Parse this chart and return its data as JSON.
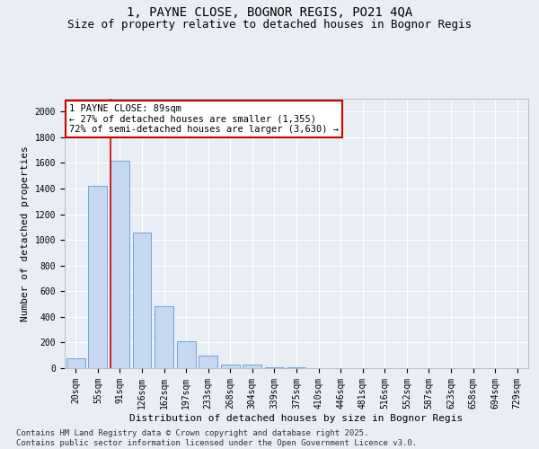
{
  "title_line1": "1, PAYNE CLOSE, BOGNOR REGIS, PO21 4QA",
  "title_line2": "Size of property relative to detached houses in Bognor Regis",
  "xlabel": "Distribution of detached houses by size in Bognor Regis",
  "ylabel": "Number of detached properties",
  "categories": [
    "20sqm",
    "55sqm",
    "91sqm",
    "126sqm",
    "162sqm",
    "197sqm",
    "233sqm",
    "268sqm",
    "304sqm",
    "339sqm",
    "375sqm",
    "410sqm",
    "446sqm",
    "481sqm",
    "516sqm",
    "552sqm",
    "587sqm",
    "623sqm",
    "658sqm",
    "694sqm",
    "729sqm"
  ],
  "values": [
    75,
    1420,
    1620,
    1060,
    480,
    210,
    100,
    30,
    25,
    10,
    5,
    0,
    0,
    0,
    0,
    0,
    0,
    0,
    0,
    0,
    0
  ],
  "bar_color": "#c5d8f0",
  "bar_edge_color": "#5b9bd5",
  "vline_x_idx": 2,
  "vline_color": "#cc0000",
  "annotation_text": "1 PAYNE CLOSE: 89sqm\n← 27% of detached houses are smaller (1,355)\n72% of semi-detached houses are larger (3,630) →",
  "annotation_box_color": "#cc0000",
  "ylim": [
    0,
    2100
  ],
  "yticks": [
    0,
    200,
    400,
    600,
    800,
    1000,
    1200,
    1400,
    1600,
    1800,
    2000
  ],
  "bg_color": "#e8eef4",
  "grid_color": "#ffffff",
  "title_fontsize": 10,
  "subtitle_fontsize": 9,
  "axis_label_fontsize": 8,
  "tick_fontsize": 7,
  "annotation_fontsize": 7.5,
  "footer_fontsize": 6.5,
  "footer_line1": "Contains HM Land Registry data © Crown copyright and database right 2025.",
  "footer_line2": "Contains public sector information licensed under the Open Government Licence v3.0."
}
